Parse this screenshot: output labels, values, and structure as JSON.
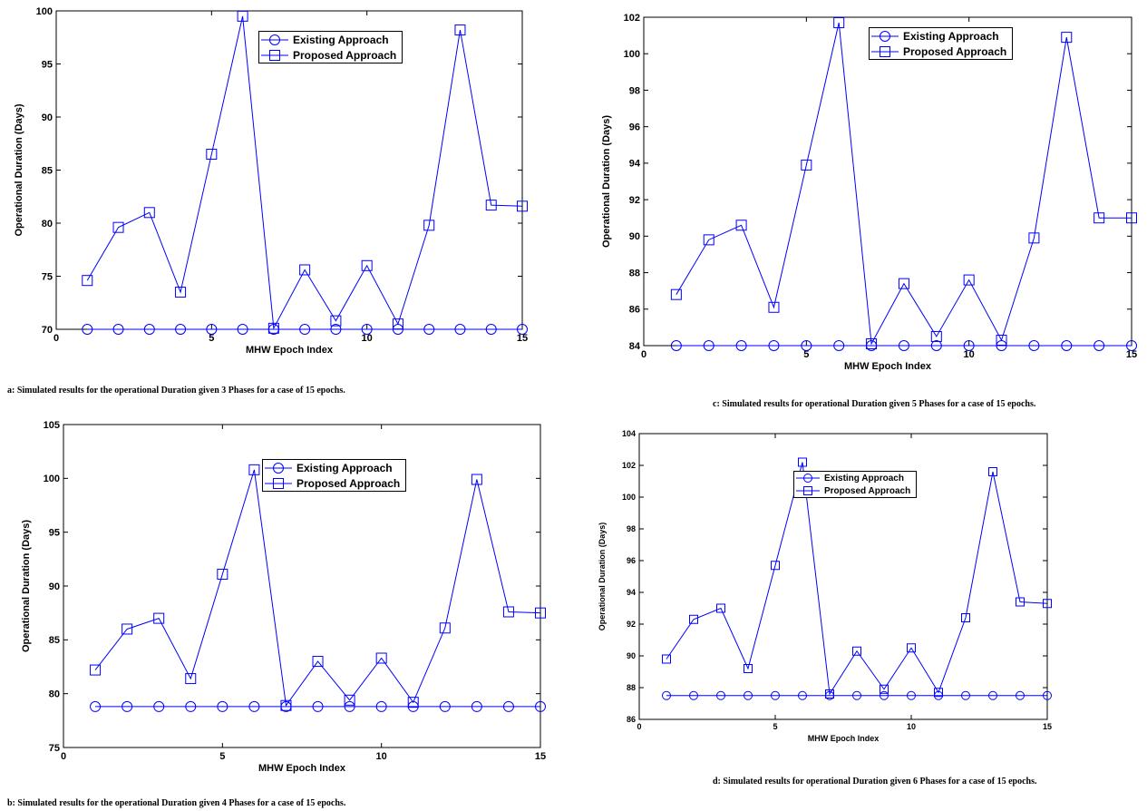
{
  "chart_data": [
    {
      "id": "a",
      "type": "line",
      "caption": "a: Simulated results for the operational Duration given 3 Phases for a case of 15 epochs.",
      "xlabel": "MHW Epoch Index",
      "ylabel": "Operational Duration (Days)",
      "xlim": [
        0,
        15
      ],
      "ylim": [
        70,
        100
      ],
      "xticks": [
        0,
        5,
        10,
        15
      ],
      "yticks": [
        70,
        75,
        80,
        85,
        90,
        95,
        100
      ],
      "legend_position": "top-center",
      "x": [
        1,
        2,
        3,
        4,
        5,
        6,
        7,
        8,
        9,
        10,
        11,
        12,
        13,
        14,
        15
      ],
      "series": [
        {
          "name": "Existing Approach",
          "marker": "circle",
          "values": [
            70,
            70,
            70,
            70,
            70,
            70,
            70,
            70,
            70,
            70,
            70,
            70,
            70,
            70,
            70
          ]
        },
        {
          "name": "Proposed Approach",
          "marker": "square",
          "values": [
            74.6,
            79.6,
            81.0,
            73.5,
            86.5,
            99.5,
            70.1,
            75.6,
            70.8,
            76.0,
            70.5,
            79.8,
            98.2,
            81.7,
            81.6
          ]
        }
      ]
    },
    {
      "id": "c",
      "type": "line",
      "caption": "c: Simulated results for operational Duration given 5 Phases for a case of 15 epochs.",
      "xlabel": "MHW Epoch Index",
      "ylabel": "Operational Duration (Days)",
      "xlim": [
        0,
        15
      ],
      "ylim": [
        84,
        102
      ],
      "xticks": [
        0,
        5,
        10,
        15
      ],
      "yticks": [
        84,
        86,
        88,
        90,
        92,
        94,
        96,
        98,
        100,
        102
      ],
      "legend_position": "top-center",
      "x": [
        1,
        2,
        3,
        4,
        5,
        6,
        7,
        8,
        9,
        10,
        11,
        12,
        13,
        14,
        15
      ],
      "series": [
        {
          "name": "Existing Approach",
          "marker": "circle",
          "values": [
            84,
            84,
            84,
            84,
            84,
            84,
            84,
            84,
            84,
            84,
            84,
            84,
            84,
            84,
            84
          ]
        },
        {
          "name": "Proposed Approach",
          "marker": "square",
          "values": [
            86.8,
            89.8,
            90.6,
            86.1,
            93.9,
            101.7,
            84.1,
            87.4,
            84.5,
            87.6,
            84.3,
            89.9,
            100.9,
            91.0,
            91.0
          ]
        }
      ]
    },
    {
      "id": "b",
      "type": "line",
      "caption": "b: Simulated results for the operational Duration given 4 Phases for a case of 15 epochs.",
      "xlabel": "MHW Epoch Index",
      "ylabel": "Operational Duration (Days)",
      "xlim": [
        0,
        15
      ],
      "ylim": [
        75,
        105
      ],
      "xticks": [
        0,
        5,
        10,
        15
      ],
      "yticks": [
        75,
        80,
        85,
        90,
        95,
        100,
        105
      ],
      "legend_position": "top-center",
      "x": [
        1,
        2,
        3,
        4,
        5,
        6,
        7,
        8,
        9,
        10,
        11,
        12,
        13,
        14,
        15
      ],
      "series": [
        {
          "name": "Existing Approach",
          "marker": "circle",
          "values": [
            78.8,
            78.8,
            78.8,
            78.8,
            78.8,
            78.8,
            78.8,
            78.8,
            78.8,
            78.8,
            78.8,
            78.8,
            78.8,
            78.8,
            78.8
          ]
        },
        {
          "name": "Proposed Approach",
          "marker": "square",
          "values": [
            82.2,
            86.0,
            87.0,
            81.4,
            91.1,
            100.8,
            78.9,
            83.0,
            79.4,
            83.3,
            79.2,
            86.1,
            99.9,
            87.6,
            87.5
          ]
        }
      ]
    },
    {
      "id": "d",
      "type": "line",
      "caption": "d: Simulated results for operational Duration given 6 Phases for a case of 15 epochs.",
      "xlabel": "MHW Epoch Index",
      "ylabel": "Operational Duration (Days)",
      "xlim": [
        0,
        15
      ],
      "ylim": [
        86,
        104
      ],
      "xticks": [
        0,
        5,
        10,
        15
      ],
      "yticks": [
        86,
        88,
        90,
        92,
        94,
        96,
        98,
        100,
        102,
        104
      ],
      "legend_position": "top-center",
      "x": [
        1,
        2,
        3,
        4,
        5,
        6,
        7,
        8,
        9,
        10,
        11,
        12,
        13,
        14,
        15
      ],
      "series": [
        {
          "name": "Existing Approach",
          "marker": "circle",
          "values": [
            87.5,
            87.5,
            87.5,
            87.5,
            87.5,
            87.5,
            87.5,
            87.5,
            87.5,
            87.5,
            87.5,
            87.5,
            87.5,
            87.5,
            87.5
          ]
        },
        {
          "name": "Proposed Approach",
          "marker": "square",
          "values": [
            89.8,
            92.3,
            93.0,
            89.2,
            95.7,
            102.2,
            87.6,
            90.3,
            87.9,
            90.5,
            87.7,
            92.4,
            101.6,
            93.4,
            93.3
          ]
        }
      ]
    }
  ],
  "colors": {
    "series": "#0000ff",
    "axis": "#000000"
  }
}
